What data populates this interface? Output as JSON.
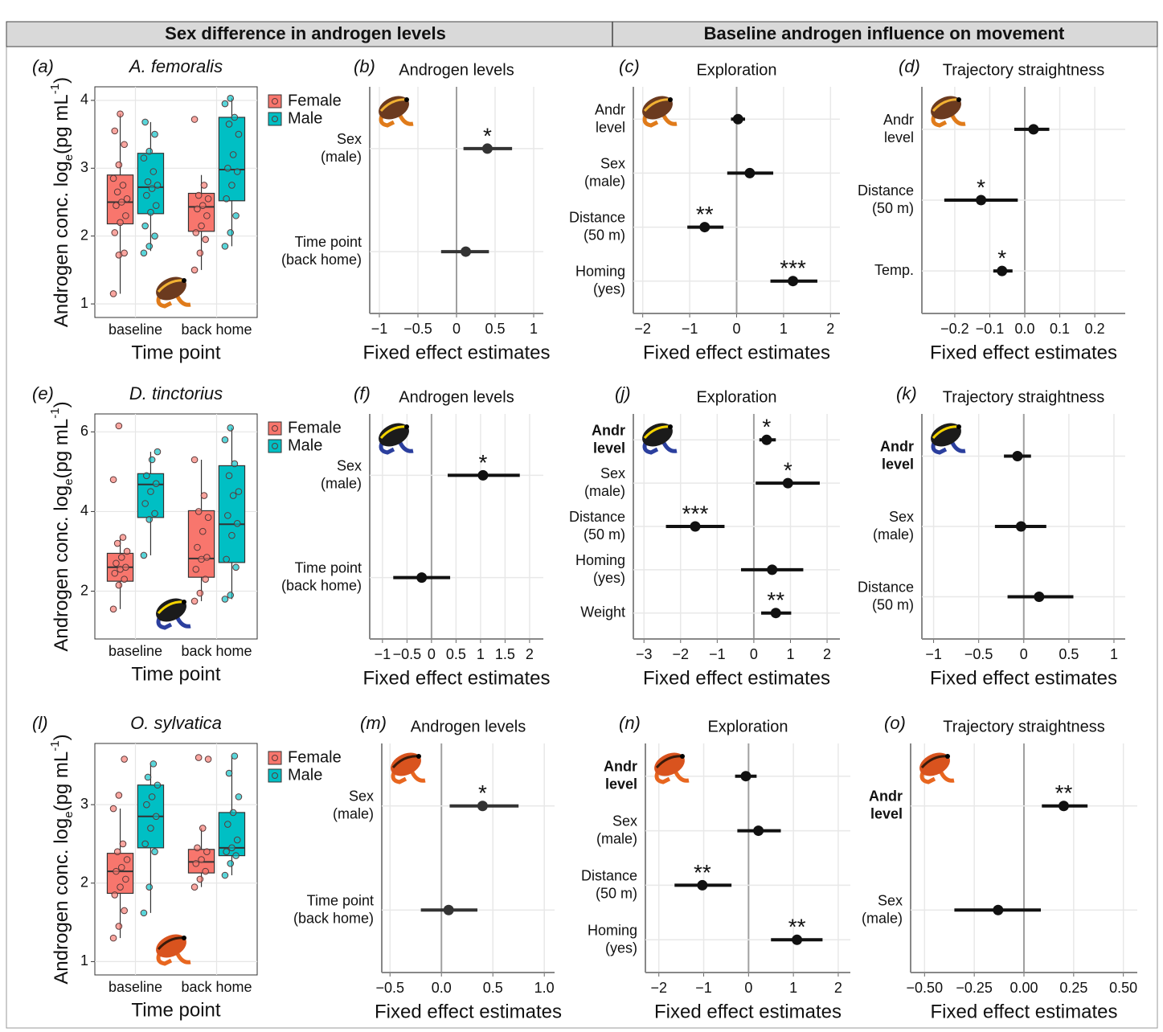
{
  "header": {
    "left": "Sex difference in androgen levels",
    "right": "Baseline androgen influence on movement"
  },
  "chart_data": [
    {
      "type": "box",
      "panel_label": "(a)",
      "title": "A. femoralis",
      "title_style": "italic",
      "ylabel": [
        "Androgen conc. log",
        "e",
        "(pg mL",
        "-1",
        ")"
      ],
      "xlabel": "Time point",
      "categories": [
        "baseline",
        "back home"
      ],
      "ylim": [
        0.8,
        4.2
      ],
      "yticks": [
        1,
        2,
        3,
        4
      ],
      "grid": true,
      "legend": "right",
      "series": [
        {
          "name": "Female",
          "color": "#f8766d",
          "boxes": [
            {
              "min": 1.15,
              "q1": 2.18,
              "median": 2.5,
              "q3": 2.9,
              "max": 3.8,
              "points": [
                1.15,
                1.72,
                1.75,
                2.05,
                2.2,
                2.3,
                2.45,
                2.5,
                2.55,
                2.65,
                2.75,
                2.85,
                3.05,
                3.35,
                3.55,
                3.8
              ]
            },
            {
              "min": 1.5,
              "q1": 2.07,
              "median": 2.43,
              "q3": 2.63,
              "max": 2.9,
              "points": [
                1.5,
                1.75,
                1.95,
                2.05,
                2.15,
                2.3,
                2.4,
                2.45,
                2.55,
                2.6,
                2.75,
                3.72
              ]
            }
          ]
        },
        {
          "name": "Male",
          "color": "#00bfc4",
          "boxes": [
            {
              "min": 1.78,
              "q1": 2.33,
              "median": 2.72,
              "q3": 3.22,
              "max": 3.68,
              "points": [
                1.75,
                1.85,
                2.0,
                2.15,
                2.35,
                2.45,
                2.6,
                2.7,
                2.75,
                2.8,
                2.95,
                3.15,
                3.25,
                3.5,
                3.68
              ]
            },
            {
              "min": 1.85,
              "q1": 2.52,
              "median": 2.98,
              "q3": 3.75,
              "max": 4.03,
              "points": [
                1.85,
                2.05,
                2.3,
                2.55,
                2.75,
                2.95,
                3.0,
                3.2,
                3.5,
                3.65,
                3.75,
                3.95,
                4.03
              ]
            }
          ]
        }
      ]
    },
    {
      "type": "forest",
      "panel_label": "(b)",
      "title": "Androgen levels",
      "xlabel": "Fixed effect estimates",
      "color": "#333333",
      "categories": [
        [
          "Sex",
          "(male)"
        ],
        [
          "Time point",
          "(back home)"
        ]
      ],
      "values": [
        0.4,
        0.12
      ],
      "lower": [
        0.09,
        -0.2
      ],
      "upper": [
        0.72,
        0.42
      ],
      "annotations": [
        "*",
        null
      ],
      "xlim": [
        -1.125,
        1.125
      ],
      "xticks": [
        {
          "value": -1,
          "label": "−1"
        },
        {
          "value": -0.5,
          "label": "−0.5"
        },
        0,
        0.5,
        1
      ],
      "grid": true
    },
    {
      "type": "forest",
      "panel_label": "(c)",
      "title": "Exploration",
      "xlabel": "Fixed effect estimates",
      "color": "#111111",
      "categories": [
        [
          "Andr",
          "level"
        ],
        [
          "Sex",
          "(male)"
        ],
        [
          "Distance",
          "(50 m)"
        ],
        [
          "Homing",
          "(yes)"
        ]
      ],
      "values": [
        0.03,
        0.28,
        -0.68,
        1.2
      ],
      "lower": [
        -0.12,
        -0.2,
        -1.05,
        0.72
      ],
      "upper": [
        0.18,
        0.78,
        -0.28,
        1.72
      ],
      "annotations": [
        null,
        null,
        "**",
        "***"
      ],
      "xlim": [
        -2.2,
        2.2
      ],
      "xticks": [
        {
          "value": -2,
          "label": "−2"
        },
        {
          "value": -1,
          "label": "−1"
        },
        0,
        1,
        2
      ],
      "grid": true
    },
    {
      "type": "forest",
      "panel_label": "(d)",
      "title": "Trajectory straightness",
      "xlabel": "Fixed effect estimates",
      "color": "#111111",
      "categories": [
        [
          "Andr",
          "level"
        ],
        [
          "Distance",
          "(50 m)"
        ],
        [
          "Temp."
        ]
      ],
      "values": [
        0.025,
        -0.125,
        -0.065
      ],
      "lower": [
        -0.03,
        -0.23,
        -0.09
      ],
      "upper": [
        0.07,
        -0.02,
        -0.035
      ],
      "annotations": [
        null,
        "*",
        "*"
      ],
      "xlim": [
        -0.294,
        0.287
      ],
      "xticks": [
        {
          "value": -0.2,
          "label": "−0.2"
        },
        {
          "value": -0.1,
          "label": "−0.1"
        },
        {
          "value": 0,
          "label": "0.0"
        },
        0.1,
        0.2
      ],
      "grid": true
    },
    {
      "type": "box",
      "panel_label": "(e)",
      "title": "D. tinctorius",
      "title_style": "italic",
      "ylabel": [
        "Androgen conc. log",
        "e",
        "(pg mL",
        "-1",
        ")"
      ],
      "xlabel": "Time point",
      "categories": [
        "baseline",
        "back home"
      ],
      "ylim": [
        0.8,
        6.45
      ],
      "yticks": [
        2,
        4,
        6
      ],
      "grid": true,
      "legend": "right",
      "series": [
        {
          "name": "Female",
          "color": "#f8766d",
          "boxes": [
            {
              "min": 1.55,
              "q1": 2.25,
              "median": 2.6,
              "q3": 2.95,
              "max": 3.35,
              "points": [
                1.55,
                2.15,
                2.3,
                2.45,
                2.55,
                2.6,
                2.7,
                2.85,
                3.0,
                3.2,
                3.35,
                4.8,
                6.15
              ]
            },
            {
              "min": 1.75,
              "q1": 2.35,
              "median": 2.82,
              "q3": 4.02,
              "max": 5.3,
              "points": [
                1.75,
                1.95,
                2.3,
                2.55,
                2.8,
                2.85,
                3.1,
                3.5,
                3.85,
                4.0,
                4.4,
                5.3
              ]
            }
          ]
        },
        {
          "name": "Male",
          "color": "#00bfc4",
          "boxes": [
            {
              "min": 2.9,
              "q1": 3.85,
              "median": 4.68,
              "q3": 4.95,
              "max": 5.5,
              "points": [
                2.9,
                3.8,
                3.95,
                4.2,
                4.5,
                4.7,
                4.9,
                5.3,
                5.5
              ]
            },
            {
              "min": 1.8,
              "q1": 2.72,
              "median": 3.68,
              "q3": 5.15,
              "max": 6.1,
              "points": [
                1.8,
                1.9,
                2.6,
                2.8,
                3.4,
                3.7,
                3.9,
                4.4,
                4.5,
                4.9,
                5.2,
                5.8,
                6.1
              ]
            }
          ]
        }
      ]
    },
    {
      "type": "forest",
      "panel_label": "(f)",
      "title": "Androgen levels",
      "xlabel": "Fixed effect estimates",
      "color": "#111111",
      "categories": [
        [
          "Sex",
          "(male)"
        ],
        [
          "Time point",
          "(back home)"
        ]
      ],
      "values": [
        1.05,
        -0.2
      ],
      "lower": [
        0.33,
        -0.78
      ],
      "upper": [
        1.8,
        0.38
      ],
      "annotations": [
        "*",
        null
      ],
      "xlim": [
        -1.26,
        2.28
      ],
      "xticks": [
        {
          "value": -1,
          "label": "−1"
        },
        {
          "value": -0.5,
          "label": "−0.5"
        },
        0,
        0.5,
        1,
        1.5,
        2
      ],
      "grid": true
    },
    {
      "type": "forest",
      "panel_label": "(j)",
      "title": "Exploration",
      "xlabel": "Fixed effect estimates",
      "color": "#111111",
      "bold_rows": [
        0
      ],
      "categories": [
        [
          "Andr",
          "level"
        ],
        [
          "Sex",
          "(male)"
        ],
        [
          "Distance",
          "(50 m)"
        ],
        [
          "Homing",
          "(yes)"
        ],
        [
          "Weight"
        ]
      ],
      "values": [
        0.35,
        0.93,
        -1.6,
        0.5,
        0.6
      ],
      "lower": [
        0.15,
        0.05,
        -2.4,
        -0.35,
        0.2
      ],
      "upper": [
        0.6,
        1.8,
        -0.8,
        1.35,
        1.02
      ],
      "annotations": [
        "*",
        "*",
        "***",
        null,
        "**"
      ],
      "xlim": [
        -3.29,
        2.35
      ],
      "xticks": [
        {
          "value": -3,
          "label": "−3"
        },
        {
          "value": -2,
          "label": "−2"
        },
        {
          "value": -1,
          "label": "−1"
        },
        0,
        1,
        2
      ],
      "grid": true
    },
    {
      "type": "forest",
      "panel_label": "(k)",
      "title": "Trajectory straightness",
      "xlabel": "Fixed effect estimates",
      "color": "#111111",
      "bold_rows": [
        0
      ],
      "categories": [
        [
          "Andr",
          "level"
        ],
        [
          "Sex",
          "(male)"
        ],
        [
          "Distance",
          "(50 m)"
        ]
      ],
      "values": [
        -0.07,
        -0.03,
        0.17
      ],
      "lower": [
        -0.22,
        -0.32,
        -0.18
      ],
      "upper": [
        0.08,
        0.25,
        0.55
      ],
      "annotations": [
        null,
        null,
        null
      ],
      "xlim": [
        -1.13,
        1.125
      ],
      "xticks": [
        {
          "value": -1,
          "label": "−1"
        },
        {
          "value": -0.5,
          "label": "−0.5"
        },
        0,
        0.5,
        1
      ],
      "grid": true
    },
    {
      "type": "box",
      "panel_label": "(l)",
      "title": "O. sylvatica",
      "title_style": "italic",
      "ylabel": [
        "Androgen conc. log",
        "e",
        "(pg mL",
        "-1",
        ")"
      ],
      "xlabel": "Time point",
      "categories": [
        "baseline",
        "back home"
      ],
      "ylim": [
        0.83,
        3.78
      ],
      "yticks": [
        1,
        2,
        3
      ],
      "grid": true,
      "legend": "right",
      "series": [
        {
          "name": "Female",
          "color": "#f8766d",
          "boxes": [
            {
              "min": 1.3,
              "q1": 1.87,
              "median": 2.15,
              "q3": 2.38,
              "max": 2.95,
              "points": [
                1.3,
                1.45,
                1.65,
                1.85,
                1.95,
                2.05,
                2.15,
                2.2,
                2.3,
                2.4,
                2.5,
                2.95,
                3.12,
                3.58
              ]
            },
            {
              "min": 1.95,
              "q1": 2.13,
              "median": 2.27,
              "q3": 2.43,
              "max": 2.7,
              "points": [
                1.95,
                2.05,
                2.15,
                2.25,
                2.3,
                2.4,
                2.45,
                2.7,
                3.58,
                3.6
              ]
            }
          ]
        },
        {
          "name": "Male",
          "color": "#00bfc4",
          "boxes": [
            {
              "min": 1.62,
              "q1": 2.45,
              "median": 2.85,
              "q3": 3.25,
              "max": 3.52,
              "points": [
                1.62,
                1.95,
                2.4,
                2.5,
                2.7,
                2.85,
                3.0,
                3.1,
                3.25,
                3.35,
                3.52
              ]
            },
            {
              "min": 2.1,
              "q1": 2.35,
              "median": 2.45,
              "q3": 2.9,
              "max": 3.62,
              "points": [
                2.1,
                2.25,
                2.35,
                2.4,
                2.45,
                2.55,
                2.75,
                2.9,
                3.1,
                3.4,
                3.62
              ]
            }
          ]
        }
      ]
    },
    {
      "type": "forest",
      "panel_label": "(m)",
      "title": "Androgen levels",
      "xlabel": "Fixed effect estimates",
      "color": "#333333",
      "categories": [
        [
          "Sex",
          "(male)"
        ],
        [
          "Time point",
          "(back home)"
        ]
      ],
      "values": [
        0.4,
        0.07
      ],
      "lower": [
        0.08,
        -0.2
      ],
      "upper": [
        0.75,
        0.35
      ],
      "annotations": [
        "*",
        null
      ],
      "xlim": [
        -0.58,
        1.1
      ],
      "xticks": [
        {
          "value": -0.5,
          "label": "−0.5"
        },
        {
          "value": 0,
          "label": "0.0"
        },
        0.5,
        {
          "value": 1,
          "label": "1.0"
        }
      ],
      "grid": true
    },
    {
      "type": "forest",
      "panel_label": "(n)",
      "title": "Exploration",
      "xlabel": "Fixed effect estimates",
      "color": "#111111",
      "bold_rows": [
        0
      ],
      "categories": [
        [
          "Andr",
          "level"
        ],
        [
          "Sex",
          "(male)"
        ],
        [
          "Distance",
          "(50 m)"
        ],
        [
          "Homing",
          "(yes)"
        ]
      ],
      "values": [
        -0.06,
        0.22,
        -1.03,
        1.08
      ],
      "lower": [
        -0.3,
        -0.25,
        -1.65,
        0.5
      ],
      "upper": [
        0.18,
        0.72,
        -0.38,
        1.65
      ],
      "annotations": [
        null,
        null,
        "**",
        "**"
      ],
      "xlim": [
        -2.3,
        2.27
      ],
      "xticks": [
        {
          "value": -2,
          "label": "−2"
        },
        {
          "value": -1,
          "label": "−1"
        },
        0,
        1,
        2
      ],
      "grid": true
    },
    {
      "type": "forest",
      "panel_label": "(o)",
      "title": "Trajectory straightness",
      "xlabel": "Fixed effect estimates",
      "color": "#111111",
      "bold_rows": [
        0
      ],
      "categories": [
        [
          "Andr",
          "level"
        ],
        [
          "Sex",
          "(male)"
        ]
      ],
      "values": [
        0.2,
        -0.13
      ],
      "lower": [
        0.09,
        -0.35
      ],
      "upper": [
        0.32,
        0.085
      ],
      "annotations": [
        "**",
        null
      ],
      "xlim": [
        -0.57,
        0.57
      ],
      "xticks": [
        {
          "value": -0.5,
          "label": "−0.50"
        },
        {
          "value": -0.25,
          "label": "−0.25"
        },
        {
          "value": 0,
          "label": "0.00"
        },
        0.25,
        {
          "value": 0.5,
          "label": "0.50"
        }
      ],
      "grid": true
    }
  ]
}
